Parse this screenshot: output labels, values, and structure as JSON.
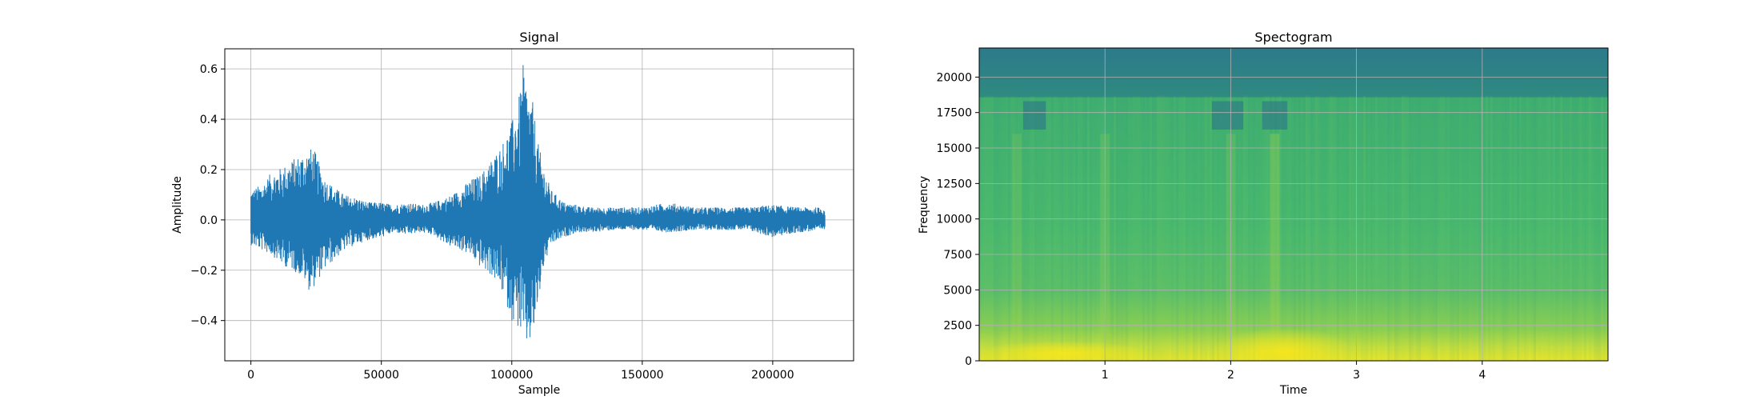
{
  "chart_data": [
    {
      "type": "line",
      "title": "Signal",
      "xlabel": "Sample",
      "ylabel": "Amplitude",
      "xlim": [
        -10000,
        231000
      ],
      "ylim": [
        -0.56,
        0.68
      ],
      "xticks": [
        0,
        50000,
        100000,
        150000,
        200000
      ],
      "xtick_labels": [
        "0",
        "50000",
        "100000",
        "150000",
        "200000"
      ],
      "yticks": [
        -0.4,
        -0.2,
        0.0,
        0.2,
        0.4,
        0.6
      ],
      "ytick_labels": [
        "−0.4",
        "−0.2",
        "0.0",
        "0.2",
        "0.4",
        "0.6"
      ],
      "grid": true,
      "color": "#1f77b4",
      "series": [
        {
          "x": [
            0,
            4000,
            8000,
            12000,
            16000,
            20000,
            22000,
            24000,
            28000,
            32000,
            36000,
            40000,
            45000,
            50000,
            55000,
            60000,
            65000,
            70000,
            75000,
            80000,
            84000,
            88000,
            92000,
            96000,
            100000,
            103000,
            104500,
            106000,
            108000,
            110000,
            112000,
            115000,
            120000,
            125000,
            130000,
            140000,
            150000,
            160000,
            170000,
            180000,
            190000,
            200000,
            210000,
            220000
          ],
          "upper": [
            0.12,
            0.14,
            0.19,
            0.21,
            0.24,
            0.27,
            0.28,
            0.29,
            0.17,
            0.13,
            0.1,
            0.09,
            0.07,
            0.07,
            0.06,
            0.07,
            0.06,
            0.07,
            0.09,
            0.12,
            0.16,
            0.18,
            0.24,
            0.3,
            0.39,
            0.5,
            0.63,
            0.52,
            0.47,
            0.31,
            0.22,
            0.12,
            0.07,
            0.06,
            0.05,
            0.05,
            0.05,
            0.07,
            0.05,
            0.05,
            0.05,
            0.06,
            0.05,
            0.05
          ],
          "lower": [
            -0.1,
            -0.12,
            -0.14,
            -0.18,
            -0.2,
            -0.23,
            -0.28,
            -0.27,
            -0.2,
            -0.16,
            -0.12,
            -0.1,
            -0.08,
            -0.07,
            -0.05,
            -0.06,
            -0.05,
            -0.06,
            -0.1,
            -0.12,
            -0.14,
            -0.19,
            -0.22,
            -0.28,
            -0.4,
            -0.44,
            -0.5,
            -0.51,
            -0.48,
            -0.35,
            -0.2,
            -0.1,
            -0.07,
            -0.05,
            -0.05,
            -0.04,
            -0.04,
            -0.05,
            -0.04,
            -0.04,
            -0.04,
            -0.07,
            -0.05,
            -0.04
          ]
        }
      ]
    },
    {
      "type": "heatmap",
      "title": "Spectogram",
      "xlabel": "Time",
      "ylabel": "Frequency",
      "xlim": [
        0,
        5.0
      ],
      "ylim": [
        0,
        22050
      ],
      "xticks": [
        1,
        2,
        3,
        4
      ],
      "xtick_labels": [
        "1",
        "2",
        "3",
        "4"
      ],
      "yticks": [
        0,
        2500,
        5000,
        7500,
        10000,
        12500,
        15000,
        17500,
        20000
      ],
      "ytick_labels": [
        "0",
        "2500",
        "5000",
        "7500",
        "10000",
        "12500",
        "15000",
        "17500",
        "20000"
      ],
      "grid": true,
      "colormap": [
        "#2c7a8c",
        "#2a9d7f",
        "#4fba6a",
        "#8cd04f",
        "#d1e33c",
        "#f2e81f"
      ],
      "cutoff_frequency": 18700
    }
  ]
}
